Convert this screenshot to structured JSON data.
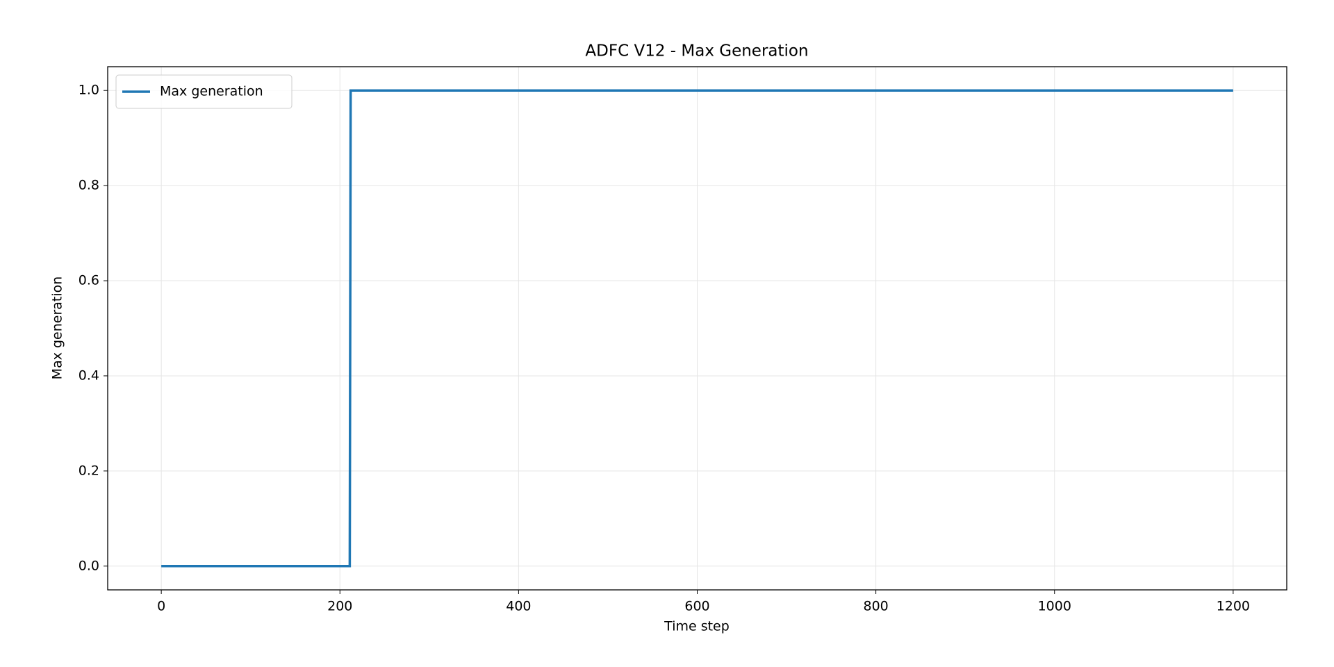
{
  "chart_data": {
    "type": "line",
    "title": "ADFC V12 - Max Generation",
    "x_label": "Time step",
    "y_label": "Max generation",
    "x": [
      0,
      211,
      212,
      1200
    ],
    "series": [
      {
        "name": "Max generation",
        "color": "#1f77b4",
        "values": [
          0,
          0,
          1,
          1
        ]
      }
    ],
    "xlim": [
      -60,
      1260
    ],
    "xticks": [
      0,
      200,
      400,
      600,
      800,
      1000,
      1200
    ],
    "ylim": [
      -0.05,
      1.05
    ],
    "yticks": [
      {
        "value": 0,
        "label": "0.0"
      },
      {
        "value": 0.2,
        "label": "0.2"
      },
      {
        "value": 0.4,
        "label": "0.4"
      },
      {
        "value": 0.6,
        "label": "0.6"
      },
      {
        "value": 0.8,
        "label": "0.8"
      },
      {
        "value": 1,
        "label": "1.0"
      }
    ],
    "grid": true,
    "legend": "upper left"
  }
}
